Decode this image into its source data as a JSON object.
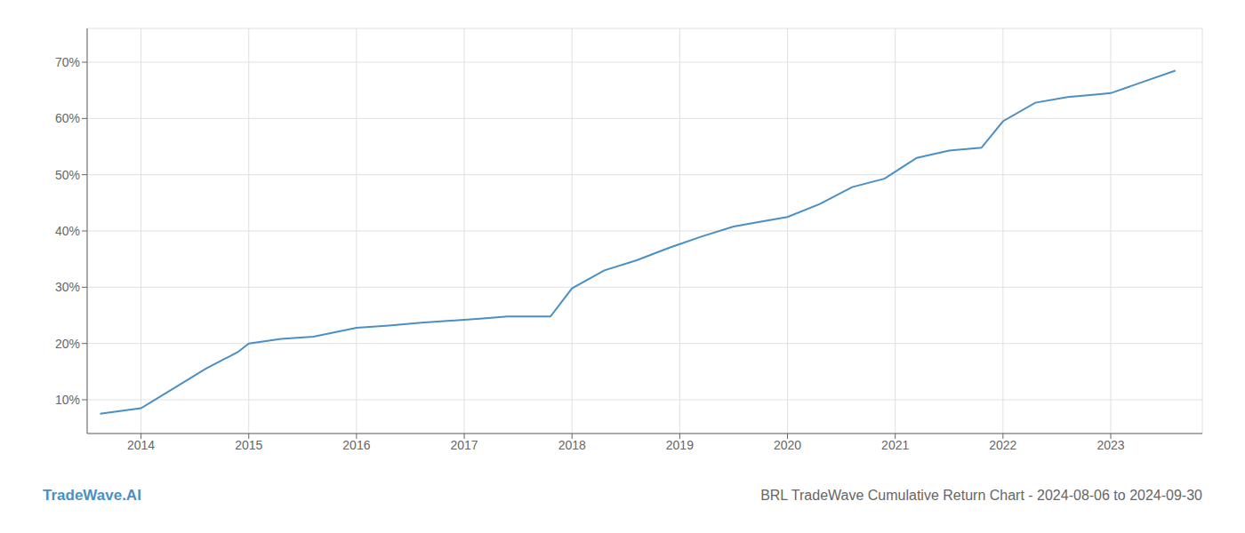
{
  "chart_data": {
    "type": "line",
    "title": "BRL TradeWave Cumulative Return Chart - 2024-08-06 to 2024-09-30",
    "annotations": [
      "TradeWave.AI"
    ],
    "color": "#4a90c4",
    "x": [
      2013.62,
      2014.0,
      2014.3,
      2014.6,
      2014.9,
      2015.0,
      2015.3,
      2015.6,
      2016.0,
      2016.3,
      2016.6,
      2017.0,
      2017.2,
      2017.4,
      2017.6,
      2017.8,
      2018.0,
      2018.3,
      2018.6,
      2018.9,
      2019.2,
      2019.5,
      2019.8,
      2020.0,
      2020.3,
      2020.6,
      2020.9,
      2021.2,
      2021.5,
      2021.8,
      2022.0,
      2022.3,
      2022.6,
      2022.9,
      2023.0,
      2023.3,
      2023.6
    ],
    "values": [
      0.075,
      0.085,
      0.12,
      0.155,
      0.185,
      0.2,
      0.208,
      0.212,
      0.228,
      0.232,
      0.237,
      0.242,
      0.245,
      0.248,
      0.248,
      0.248,
      0.298,
      0.33,
      0.348,
      0.37,
      0.39,
      0.408,
      0.418,
      0.425,
      0.448,
      0.478,
      0.493,
      0.53,
      0.543,
      0.548,
      0.595,
      0.628,
      0.638,
      0.643,
      0.645,
      0.665,
      0.685
    ],
    "xlim": [
      2013.5,
      2023.85
    ],
    "ylim": [
      0.04,
      0.76
    ],
    "xticks": [
      2014,
      2015,
      2016,
      2017,
      2018,
      2019,
      2020,
      2021,
      2022,
      2023
    ],
    "yticks": [
      {
        "value": 0.1,
        "label": "10%"
      },
      {
        "value": 0.2,
        "label": "20%"
      },
      {
        "value": 0.3,
        "label": "30%"
      },
      {
        "value": 0.4,
        "label": "40%"
      },
      {
        "value": 0.5,
        "label": "50%"
      },
      {
        "value": 0.6,
        "label": "60%"
      },
      {
        "value": 0.7,
        "label": "70%"
      }
    ],
    "grid": true
  }
}
